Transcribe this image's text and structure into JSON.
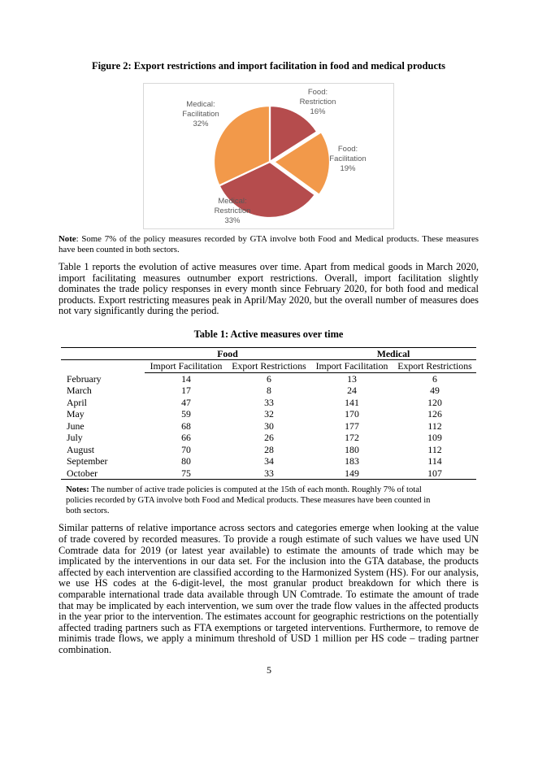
{
  "page": {
    "number": "5"
  },
  "figure": {
    "title": "Figure 2: Export restrictions and import facilitation in food and medical products",
    "note_label": "Note",
    "note_text": ": Some 7% of the policy measures recorded by GTA involve both Food and Medical products. These measures have been counted in both sectors."
  },
  "chart_data": {
    "type": "pie",
    "categories": [
      "Food: Restriction",
      "Food: Facilitation",
      "Medical: Restriction",
      "Medical: Facilitation"
    ],
    "values": [
      16,
      19,
      33,
      32
    ],
    "unit": "%",
    "colors": [
      "#B54C4D",
      "#F2994A",
      "#B54C4D",
      "#F2994A"
    ],
    "start_angle": "top",
    "direction": "clockwise",
    "exploded_slice": "Food: Facilitation",
    "label_color": "#595959",
    "slice_labels": [
      "Food:\nRestriction\n16%",
      "Food:\nFacilitation\n19%",
      "Medical:\nRestriction\n33%",
      "Medical:\nFacilitation\n32%"
    ]
  },
  "paragraphs": {
    "p1": "Table 1 reports the evolution of active measures over time. Apart from medical goods in March 2020, import facilitating measures outnumber export restrictions. Overall, import facilitation slightly dominates the trade policy responses in every month since February 2020, for both food and medical products. Export restricting measures peak in April/May 2020, but the overall number of measures does not vary significantly during the period.",
    "p2": "Similar patterns of relative importance across sectors and categories emerge when looking at the value of trade covered by recorded measures. To provide a rough estimate of such values we have used UN Comtrade data for 2019 (or latest year available) to estimate the amounts of trade which may be implicated by the interventions in our data set. For the inclusion into the GTA database, the products affected by each intervention are classified according to the Harmonized System (HS). For our analysis, we use HS codes at the 6-digit-level, the most granular product breakdown for which there is comparable international trade data available through UN Comtrade. To estimate the amount of trade that may be implicated by each intervention, we sum over the trade flow values in the affected products in the year prior to the intervention. The estimates account for geographic restrictions on the potentially affected trading partners such as FTA exemptions or targeted interventions. Furthermore, to remove de minimis trade flows, we apply a minimum threshold of USD 1 million per HS code – trading partner combination."
  },
  "table": {
    "title": "Table 1: Active measures over time",
    "group_headers": [
      "Food",
      "Medical"
    ],
    "sub_headers": [
      "Import Facilitation",
      "Export Restrictions",
      "Import Facilitation",
      "Export Restrictions"
    ],
    "rows": [
      {
        "month": "February",
        "values": [
          "14",
          "6",
          "13",
          "6"
        ]
      },
      {
        "month": "March",
        "values": [
          "17",
          "8",
          "24",
          "49"
        ]
      },
      {
        "month": "April",
        "values": [
          "47",
          "33",
          "141",
          "120"
        ]
      },
      {
        "month": "May",
        "values": [
          "59",
          "32",
          "170",
          "126"
        ]
      },
      {
        "month": "June",
        "values": [
          "68",
          "30",
          "177",
          "112"
        ]
      },
      {
        "month": "July",
        "values": [
          "66",
          "26",
          "172",
          "109"
        ]
      },
      {
        "month": "August",
        "values": [
          "70",
          "28",
          "180",
          "112"
        ]
      },
      {
        "month": "September",
        "values": [
          "80",
          "34",
          "183",
          "114"
        ]
      },
      {
        "month": "October",
        "values": [
          "75",
          "33",
          "149",
          "107"
        ]
      }
    ],
    "notes_label": "Notes:",
    "notes_text": " The number of active trade policies is computed at the 15th of each month. Roughly 7% of total policies recorded by GTA involve both Food and Medical products. These measures have been counted in both sectors."
  }
}
